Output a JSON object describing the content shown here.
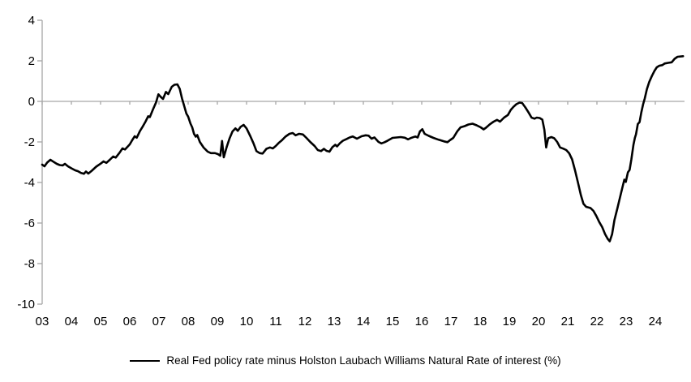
{
  "chart_data": {
    "type": "line",
    "title": "",
    "xlabel": "",
    "ylabel": "",
    "xlim": [
      2003,
      2025
    ],
    "ylim": [
      -10,
      4
    ],
    "y_ticks": [
      4,
      2,
      0,
      -2,
      -4,
      -6,
      -8,
      -10
    ],
    "x_ticks": {
      "years": [
        2003,
        2004,
        2005,
        2006,
        2007,
        2008,
        2009,
        2010,
        2011,
        2012,
        2013,
        2014,
        2015,
        2016,
        2017,
        2018,
        2019,
        2020,
        2021,
        2022,
        2023,
        2024
      ],
      "labels": [
        "03",
        "04",
        "05",
        "06",
        "07",
        "08",
        "09",
        "10",
        "11",
        "12",
        "13",
        "14",
        "15",
        "16",
        "17",
        "18",
        "19",
        "20",
        "21",
        "22",
        "23",
        "24"
      ]
    },
    "zero_line": true,
    "grid": false,
    "legend_position": "bottom",
    "colors": {
      "line": "#000000",
      "axis": "#a6a6a6",
      "text": "#000000",
      "background": "#ffffff"
    },
    "series": [
      {
        "name": "Real Fed policy rate minus Holston Laubach Williams Natural Rate of interest (%)",
        "points": [
          [
            2003.0,
            -3.12
          ],
          [
            2003.08,
            -3.2
          ],
          [
            2003.17,
            -3.02
          ],
          [
            2003.28,
            -2.88
          ],
          [
            2003.38,
            -2.97
          ],
          [
            2003.5,
            -3.08
          ],
          [
            2003.6,
            -3.14
          ],
          [
            2003.7,
            -3.16
          ],
          [
            2003.78,
            -3.08
          ],
          [
            2003.88,
            -3.2
          ],
          [
            2004.0,
            -3.3
          ],
          [
            2004.13,
            -3.4
          ],
          [
            2004.22,
            -3.44
          ],
          [
            2004.33,
            -3.53
          ],
          [
            2004.43,
            -3.57
          ],
          [
            2004.5,
            -3.46
          ],
          [
            2004.58,
            -3.56
          ],
          [
            2004.7,
            -3.42
          ],
          [
            2004.85,
            -3.22
          ],
          [
            2005.0,
            -3.07
          ],
          [
            2005.1,
            -2.96
          ],
          [
            2005.2,
            -3.03
          ],
          [
            2005.33,
            -2.86
          ],
          [
            2005.43,
            -2.72
          ],
          [
            2005.52,
            -2.77
          ],
          [
            2005.65,
            -2.53
          ],
          [
            2005.75,
            -2.32
          ],
          [
            2005.84,
            -2.37
          ],
          [
            2006.0,
            -2.12
          ],
          [
            2006.08,
            -1.92
          ],
          [
            2006.17,
            -1.72
          ],
          [
            2006.24,
            -1.79
          ],
          [
            2006.35,
            -1.46
          ],
          [
            2006.44,
            -1.25
          ],
          [
            2006.54,
            -1.0
          ],
          [
            2006.63,
            -0.73
          ],
          [
            2006.69,
            -0.77
          ],
          [
            2006.8,
            -0.38
          ],
          [
            2006.9,
            -0.05
          ],
          [
            2006.98,
            0.35
          ],
          [
            2007.06,
            0.22
          ],
          [
            2007.14,
            0.12
          ],
          [
            2007.24,
            0.47
          ],
          [
            2007.32,
            0.36
          ],
          [
            2007.44,
            0.72
          ],
          [
            2007.53,
            0.82
          ],
          [
            2007.63,
            0.84
          ],
          [
            2007.71,
            0.62
          ],
          [
            2007.79,
            0.15
          ],
          [
            2007.87,
            -0.25
          ],
          [
            2007.94,
            -0.6
          ],
          [
            2008.0,
            -0.75
          ],
          [
            2008.08,
            -1.1
          ],
          [
            2008.14,
            -1.28
          ],
          [
            2008.2,
            -1.6
          ],
          [
            2008.26,
            -1.74
          ],
          [
            2008.31,
            -1.66
          ],
          [
            2008.4,
            -2.0
          ],
          [
            2008.53,
            -2.28
          ],
          [
            2008.67,
            -2.48
          ],
          [
            2008.78,
            -2.55
          ],
          [
            2008.92,
            -2.55
          ],
          [
            2009.02,
            -2.6
          ],
          [
            2009.1,
            -2.68
          ],
          [
            2009.16,
            -1.95
          ],
          [
            2009.22,
            -2.76
          ],
          [
            2009.32,
            -2.25
          ],
          [
            2009.42,
            -1.82
          ],
          [
            2009.52,
            -1.48
          ],
          [
            2009.62,
            -1.33
          ],
          [
            2009.7,
            -1.45
          ],
          [
            2009.8,
            -1.25
          ],
          [
            2009.9,
            -1.16
          ],
          [
            2010.0,
            -1.33
          ],
          [
            2010.13,
            -1.72
          ],
          [
            2010.24,
            -2.07
          ],
          [
            2010.34,
            -2.45
          ],
          [
            2010.45,
            -2.55
          ],
          [
            2010.55,
            -2.57
          ],
          [
            2010.68,
            -2.34
          ],
          [
            2010.8,
            -2.27
          ],
          [
            2010.9,
            -2.32
          ],
          [
            2011.0,
            -2.2
          ],
          [
            2011.1,
            -2.05
          ],
          [
            2011.2,
            -1.93
          ],
          [
            2011.33,
            -1.74
          ],
          [
            2011.47,
            -1.6
          ],
          [
            2011.58,
            -1.56
          ],
          [
            2011.68,
            -1.67
          ],
          [
            2011.8,
            -1.6
          ],
          [
            2011.93,
            -1.63
          ],
          [
            2012.05,
            -1.8
          ],
          [
            2012.18,
            -2.0
          ],
          [
            2012.33,
            -2.2
          ],
          [
            2012.44,
            -2.4
          ],
          [
            2012.55,
            -2.45
          ],
          [
            2012.65,
            -2.34
          ],
          [
            2012.74,
            -2.44
          ],
          [
            2012.84,
            -2.48
          ],
          [
            2012.94,
            -2.26
          ],
          [
            2013.04,
            -2.14
          ],
          [
            2013.1,
            -2.22
          ],
          [
            2013.2,
            -2.06
          ],
          [
            2013.3,
            -1.94
          ],
          [
            2013.43,
            -1.85
          ],
          [
            2013.53,
            -1.78
          ],
          [
            2013.64,
            -1.73
          ],
          [
            2013.78,
            -1.84
          ],
          [
            2013.94,
            -1.72
          ],
          [
            2014.08,
            -1.67
          ],
          [
            2014.18,
            -1.69
          ],
          [
            2014.28,
            -1.84
          ],
          [
            2014.38,
            -1.78
          ],
          [
            2014.52,
            -2.0
          ],
          [
            2014.62,
            -2.07
          ],
          [
            2014.73,
            -2.01
          ],
          [
            2014.84,
            -1.93
          ],
          [
            2015.0,
            -1.8
          ],
          [
            2015.14,
            -1.78
          ],
          [
            2015.28,
            -1.76
          ],
          [
            2015.42,
            -1.79
          ],
          [
            2015.53,
            -1.87
          ],
          [
            2015.64,
            -1.8
          ],
          [
            2015.78,
            -1.73
          ],
          [
            2015.86,
            -1.78
          ],
          [
            2015.94,
            -1.48
          ],
          [
            2016.02,
            -1.37
          ],
          [
            2016.1,
            -1.6
          ],
          [
            2016.24,
            -1.7
          ],
          [
            2016.4,
            -1.8
          ],
          [
            2016.58,
            -1.89
          ],
          [
            2016.76,
            -1.97
          ],
          [
            2016.88,
            -2.01
          ],
          [
            2016.98,
            -1.9
          ],
          [
            2017.08,
            -1.8
          ],
          [
            2017.22,
            -1.47
          ],
          [
            2017.33,
            -1.28
          ],
          [
            2017.47,
            -1.22
          ],
          [
            2017.6,
            -1.14
          ],
          [
            2017.74,
            -1.1
          ],
          [
            2017.88,
            -1.18
          ],
          [
            2018.02,
            -1.28
          ],
          [
            2018.12,
            -1.38
          ],
          [
            2018.2,
            -1.3
          ],
          [
            2018.33,
            -1.13
          ],
          [
            2018.46,
            -1.0
          ],
          [
            2018.58,
            -0.91
          ],
          [
            2018.68,
            -1.0
          ],
          [
            2018.82,
            -0.8
          ],
          [
            2018.95,
            -0.67
          ],
          [
            2019.05,
            -0.42
          ],
          [
            2019.14,
            -0.27
          ],
          [
            2019.24,
            -0.14
          ],
          [
            2019.35,
            -0.06
          ],
          [
            2019.44,
            -0.08
          ],
          [
            2019.55,
            -0.3
          ],
          [
            2019.66,
            -0.55
          ],
          [
            2019.76,
            -0.8
          ],
          [
            2019.86,
            -0.85
          ],
          [
            2019.94,
            -0.8
          ],
          [
            2020.04,
            -0.82
          ],
          [
            2020.13,
            -0.9
          ],
          [
            2020.2,
            -1.4
          ],
          [
            2020.26,
            -2.27
          ],
          [
            2020.33,
            -1.82
          ],
          [
            2020.44,
            -1.76
          ],
          [
            2020.54,
            -1.82
          ],
          [
            2020.64,
            -2.0
          ],
          [
            2020.74,
            -2.27
          ],
          [
            2020.85,
            -2.33
          ],
          [
            2020.95,
            -2.4
          ],
          [
            2021.05,
            -2.56
          ],
          [
            2021.15,
            -2.86
          ],
          [
            2021.25,
            -3.4
          ],
          [
            2021.35,
            -4.0
          ],
          [
            2021.45,
            -4.62
          ],
          [
            2021.54,
            -5.05
          ],
          [
            2021.63,
            -5.2
          ],
          [
            2021.78,
            -5.26
          ],
          [
            2021.88,
            -5.4
          ],
          [
            2021.98,
            -5.65
          ],
          [
            2022.08,
            -5.95
          ],
          [
            2022.18,
            -6.2
          ],
          [
            2022.28,
            -6.55
          ],
          [
            2022.37,
            -6.78
          ],
          [
            2022.44,
            -6.9
          ],
          [
            2022.52,
            -6.55
          ],
          [
            2022.6,
            -5.85
          ],
          [
            2022.7,
            -5.28
          ],
          [
            2022.8,
            -4.68
          ],
          [
            2022.88,
            -4.2
          ],
          [
            2022.94,
            -3.86
          ],
          [
            2022.99,
            -3.97
          ],
          [
            2023.06,
            -3.5
          ],
          [
            2023.12,
            -3.38
          ],
          [
            2023.18,
            -2.85
          ],
          [
            2023.25,
            -2.15
          ],
          [
            2023.3,
            -1.8
          ],
          [
            2023.34,
            -1.62
          ],
          [
            2023.4,
            -1.12
          ],
          [
            2023.46,
            -1.02
          ],
          [
            2023.52,
            -0.55
          ],
          [
            2023.58,
            -0.15
          ],
          [
            2023.64,
            0.15
          ],
          [
            2023.71,
            0.6
          ],
          [
            2023.79,
            0.95
          ],
          [
            2023.88,
            1.25
          ],
          [
            2023.97,
            1.5
          ],
          [
            2024.05,
            1.68
          ],
          [
            2024.14,
            1.76
          ],
          [
            2024.24,
            1.79
          ],
          [
            2024.32,
            1.87
          ],
          [
            2024.44,
            1.9
          ],
          [
            2024.56,
            1.93
          ],
          [
            2024.66,
            2.1
          ],
          [
            2024.76,
            2.2
          ],
          [
            2024.95,
            2.23
          ]
        ]
      }
    ]
  }
}
